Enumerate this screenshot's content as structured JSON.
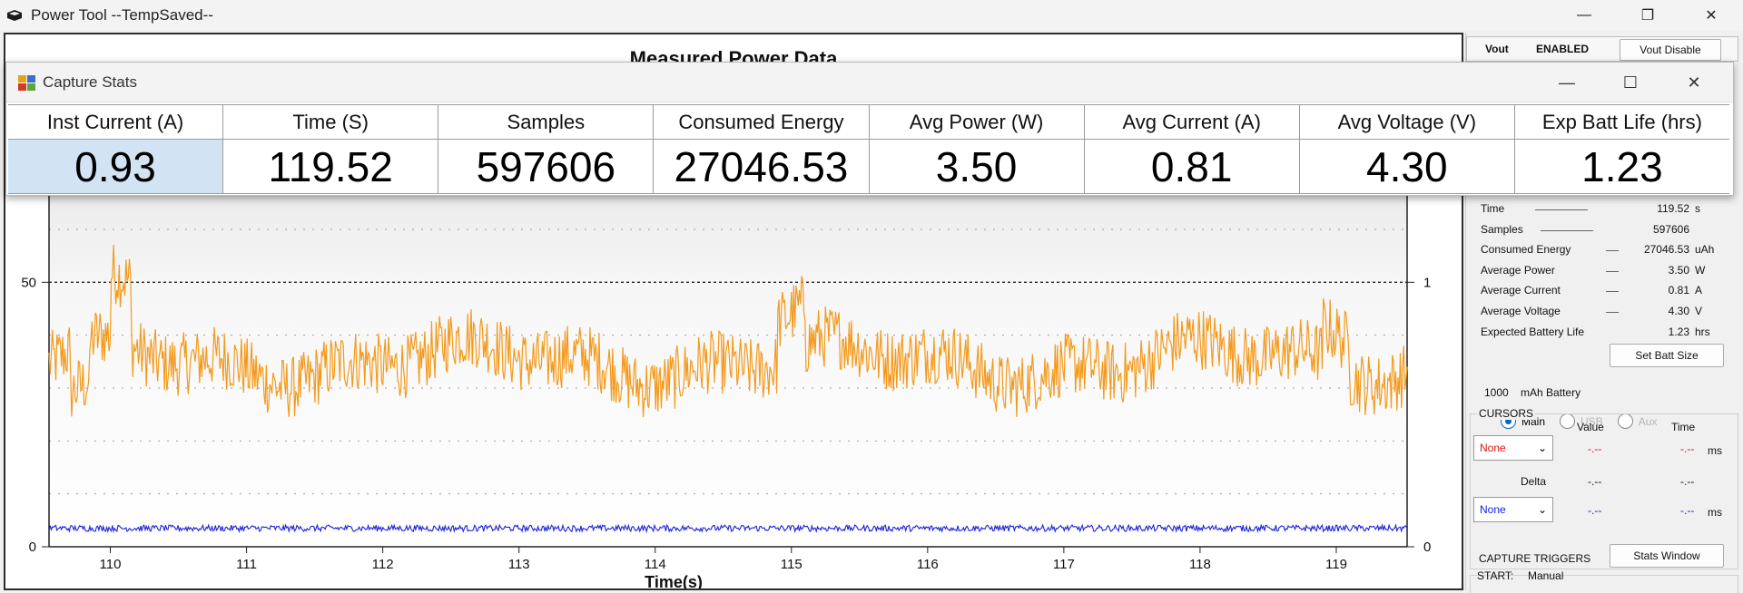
{
  "main_window": {
    "title": "Power Tool --TempSaved--",
    "controls": [
      "—",
      "❐",
      "✕"
    ]
  },
  "chart_title": "Measured Power Data",
  "chart_data": {
    "type": "line",
    "xlabel": "Time(s)",
    "x_ticks": [
      "110",
      "111",
      "112",
      "113",
      "114",
      "115",
      "116",
      "117",
      "118",
      "119"
    ],
    "xlim": [
      109.55,
      119.52
    ],
    "y_left_ticks": [
      "0",
      "50"
    ],
    "y_left_lim": [
      0,
      90
    ],
    "y_right_ticks": [
      "0",
      "1"
    ],
    "y_right_lim": [
      0,
      1.8
    ],
    "grid": "dotted horizontal",
    "series": [
      {
        "color": "#f39a1c",
        "axis": "left",
        "level": 35,
        "noise": 6
      },
      {
        "color": "#1a22d8",
        "axis": "left",
        "level": 3.5,
        "noise": 0.6
      }
    ]
  },
  "vout": {
    "label": "Vout",
    "status": "ENABLED",
    "button": "Vout Disable"
  },
  "stats_panel": {
    "rows": [
      {
        "label": "Time",
        "value": "119.52",
        "unit": "s"
      },
      {
        "label": "Samples",
        "value": "597606",
        "unit": ""
      },
      {
        "label": "Consumed Energy",
        "value": "27046.53",
        "unit": "uAh"
      },
      {
        "label": "Average Power",
        "value": "3.50",
        "unit": "W"
      },
      {
        "label": "Average Current",
        "value": "0.81",
        "unit": "A"
      },
      {
        "label": "Average Voltage",
        "value": "4.30",
        "unit": "V"
      },
      {
        "label": "Expected Battery Life",
        "value": "1.23",
        "unit": "hrs"
      }
    ],
    "battery_value": "1000",
    "battery_label": "mAh Battery",
    "set_batt_button": "Set Batt Size",
    "radios": [
      {
        "label": "Main",
        "selected": true
      },
      {
        "label": "USB",
        "selected": false
      },
      {
        "label": "Aux",
        "selected": false
      }
    ]
  },
  "cursors": {
    "title": "CURSORS",
    "value_header": "Value",
    "time_header": "Time",
    "combo1": "None",
    "combo2": "None",
    "c1_value": "-.--",
    "c1_time": "-.--",
    "c1_unit": "ms",
    "delta_label": "Delta",
    "delta_value": "-.--",
    "delta_time": "-.--",
    "c2_value": "-.--",
    "c2_time": "-.--",
    "c2_unit": "ms",
    "c1_color": "#e01010",
    "c2_color": "#1020e0"
  },
  "triggers": {
    "title": "CAPTURE TRIGGERS",
    "stats_button": "Stats Window",
    "start_label": "START:",
    "start_value": "Manual"
  },
  "capture_stats": {
    "title": "Capture Stats",
    "columns": [
      {
        "header": "Inst Current (A)",
        "value": "0.93"
      },
      {
        "header": "Time (S)",
        "value": "119.52"
      },
      {
        "header": "Samples",
        "value": "597606"
      },
      {
        "header": "Consumed Energy",
        "value": "27046.53"
      },
      {
        "header": "Avg Power (W)",
        "value": "3.50"
      },
      {
        "header": "Avg Current (A)",
        "value": "0.81"
      },
      {
        "header": "Avg Voltage (V)",
        "value": "4.30"
      },
      {
        "header": "Exp Batt Life (hrs)",
        "value": "1.23"
      }
    ]
  }
}
